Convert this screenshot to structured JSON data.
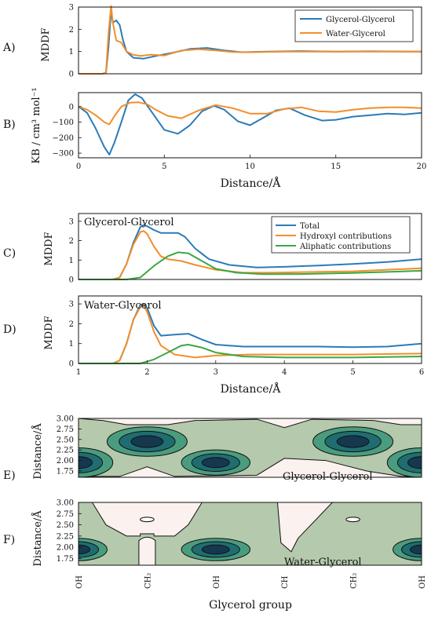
{
  "colors": {
    "blue": "#2c7bb6",
    "orange": "#f28e2b",
    "green": "#3aa843",
    "contour_bg": "#fbf1ef",
    "contour_l1": "#b5c9ac",
    "contour_l2": "#4a9c7e",
    "contour_l3": "#1f6d70",
    "contour_l4": "#16384f"
  },
  "panels": {
    "A": "A)",
    "B": "B)",
    "C": "C)",
    "D": "D)",
    "E": "E)",
    "F": "F)"
  },
  "labels": {
    "mddf": "MDDF",
    "kb": "KB / cm³ mol⁻¹",
    "distance_x": "Distance/Å",
    "distance_y": "Distance/Å",
    "glycerol_group": "Glycerol group",
    "panel_c_title": "Glycerol-Glycerol",
    "panel_d_title": "Water-Glycerol",
    "panel_e_title": "Glycerol-Glycerol",
    "panel_f_title": "Water-Glycerol"
  },
  "legend_top": [
    "Glycerol-Glycerol",
    "Water-Glycerol"
  ],
  "legend_mid": [
    "Total",
    "Hydroxyl contributions",
    "Aliphatic contributions"
  ],
  "chart_data": [
    {
      "id": "A",
      "type": "line",
      "ylabel": "MDDF",
      "xlim": [
        0,
        20
      ],
      "ylim": [
        0,
        3
      ],
      "xticks": [],
      "yticks": [
        "0",
        "1",
        "2",
        "3"
      ],
      "ytick_values": [
        0,
        1,
        2,
        3
      ],
      "legend": "top-right",
      "series": [
        {
          "name": "Glycerol-Glycerol",
          "color": "blue",
          "x": [
            0,
            1.4,
            1.6,
            1.75,
            1.9,
            2.0,
            2.2,
            2.4,
            2.6,
            2.8,
            3.2,
            3.8,
            4.5,
            5.5,
            6.5,
            7.5,
            8.5,
            9.5,
            11,
            13,
            15,
            17,
            20
          ],
          "y": [
            0,
            0,
            0.05,
            1.2,
            2.85,
            2.3,
            2.4,
            2.2,
            1.5,
            1.0,
            0.72,
            0.68,
            0.8,
            0.95,
            1.12,
            1.16,
            1.05,
            0.97,
            1.0,
            1.02,
            1.0,
            1.01,
            1.0
          ]
        },
        {
          "name": "Water-Glycerol",
          "color": "orange",
          "x": [
            0,
            1.4,
            1.6,
            1.75,
            1.9,
            2.0,
            2.2,
            2.5,
            2.8,
            3.2,
            3.6,
            4.2,
            5.0,
            6.0,
            7.0,
            8.0,
            9.0,
            10,
            12,
            14,
            16,
            18,
            20
          ],
          "y": [
            0,
            0,
            0.05,
            1.8,
            3.05,
            2.3,
            1.5,
            1.4,
            1.0,
            0.85,
            0.8,
            0.86,
            0.82,
            1.05,
            1.1,
            1.05,
            0.98,
            0.97,
            1.0,
            1.0,
            1.0,
            1.0,
            1.0
          ]
        }
      ]
    },
    {
      "id": "B",
      "type": "line",
      "ylabel": "KB / cm³ mol⁻¹",
      "xlabel": "Distance/Å",
      "xlim": [
        0,
        20
      ],
      "ylim": [
        -330,
        90
      ],
      "xticks": [
        "0",
        "5",
        "10",
        "15",
        "20"
      ],
      "xtick_values": [
        0,
        5,
        10,
        15,
        20
      ],
      "yticks": [
        "0",
        "−100",
        "−200",
        "−300"
      ],
      "ytick_values": [
        0,
        -100,
        -200,
        -300
      ],
      "series": [
        {
          "name": "Glycerol-Glycerol",
          "color": "blue",
          "x": [
            0,
            0.5,
            1.0,
            1.5,
            1.8,
            2.1,
            2.5,
            2.9,
            3.3,
            3.7,
            4.3,
            5.0,
            5.8,
            6.5,
            7.2,
            7.9,
            8.5,
            9.3,
            10.0,
            10.8,
            11.5,
            12.3,
            13.2,
            14.2,
            15.0,
            16.0,
            17.0,
            18.0,
            19.0,
            20.0
          ],
          "y": [
            0,
            -40,
            -140,
            -260,
            -310,
            -230,
            -100,
            40,
            80,
            55,
            -40,
            -150,
            -175,
            -120,
            -30,
            5,
            -20,
            -95,
            -120,
            -70,
            -25,
            -10,
            -55,
            -90,
            -85,
            -65,
            -55,
            -45,
            -50,
            -40
          ]
        },
        {
          "name": "Water-Glycerol",
          "color": "orange",
          "x": [
            0,
            0.5,
            1.0,
            1.5,
            1.8,
            2.1,
            2.5,
            3.0,
            3.5,
            4.0,
            4.5,
            5.2,
            6.0,
            7.0,
            8.0,
            9.0,
            10.0,
            11.0,
            12.0,
            13.0,
            14.0,
            15.0,
            16.0,
            17.0,
            18.0,
            19.0,
            20.0
          ],
          "y": [
            0,
            -20,
            -55,
            -100,
            -115,
            -60,
            0,
            25,
            28,
            15,
            -20,
            -60,
            -75,
            -25,
            10,
            -10,
            -45,
            -45,
            -15,
            -5,
            -30,
            -35,
            -20,
            -10,
            -5,
            -5,
            -10
          ]
        }
      ]
    },
    {
      "id": "C",
      "type": "line",
      "ylabel": "MDDF",
      "xlim": [
        1,
        6
      ],
      "ylim": [
        0,
        3.4
      ],
      "xticks": [],
      "yticks": [
        "0",
        "1",
        "2",
        "3"
      ],
      "ytick_values": [
        0,
        1,
        2,
        3
      ],
      "title": "Glycerol-Glycerol",
      "legend": "top-right",
      "series": [
        {
          "name": "Total",
          "color": "blue",
          "x": [
            1,
            1.5,
            1.6,
            1.7,
            1.8,
            1.9,
            1.95,
            2.0,
            2.1,
            2.2,
            2.3,
            2.45,
            2.55,
            2.7,
            2.9,
            3.2,
            3.6,
            4.0,
            4.5,
            5.0,
            5.5,
            6.0
          ],
          "y": [
            0,
            0,
            0.1,
            0.8,
            1.9,
            2.7,
            2.8,
            2.75,
            2.55,
            2.4,
            2.4,
            2.4,
            2.2,
            1.6,
            1.05,
            0.75,
            0.62,
            0.65,
            0.72,
            0.8,
            0.9,
            1.05
          ]
        },
        {
          "name": "Hydroxyl contributions",
          "color": "orange",
          "x": [
            1,
            1.5,
            1.6,
            1.7,
            1.8,
            1.9,
            1.95,
            2.0,
            2.1,
            2.2,
            2.3,
            2.5,
            2.7,
            3.0,
            3.4,
            3.8,
            4.3,
            5.0,
            5.5,
            6.0
          ],
          "y": [
            0,
            0,
            0.1,
            0.8,
            1.8,
            2.45,
            2.5,
            2.35,
            1.7,
            1.2,
            1.05,
            0.95,
            0.75,
            0.5,
            0.35,
            0.35,
            0.38,
            0.42,
            0.5,
            0.58
          ]
        },
        {
          "name": "Aliphatic contributions",
          "color": "green",
          "x": [
            1,
            1.7,
            1.9,
            2.1,
            2.3,
            2.45,
            2.6,
            2.8,
            3.0,
            3.3,
            3.7,
            4.2,
            5.0,
            6.0
          ],
          "y": [
            0,
            0,
            0.1,
            0.7,
            1.2,
            1.4,
            1.35,
            0.95,
            0.55,
            0.35,
            0.27,
            0.28,
            0.33,
            0.45
          ]
        }
      ]
    },
    {
      "id": "D",
      "type": "line",
      "ylabel": "MDDF",
      "xlabel": "Distance/Å",
      "xlim": [
        1,
        6
      ],
      "ylim": [
        0,
        3.4
      ],
      "xticks": [
        "1",
        "2",
        "3",
        "4",
        "5",
        "6"
      ],
      "xtick_values": [
        1,
        2,
        3,
        4,
        5,
        6
      ],
      "yticks": [
        "0",
        "1",
        "2",
        "3"
      ],
      "ytick_values": [
        0,
        1,
        2,
        3
      ],
      "title": "Water-Glycerol",
      "series": [
        {
          "name": "Total",
          "color": "blue",
          "x": [
            1,
            1.5,
            1.6,
            1.7,
            1.8,
            1.9,
            1.95,
            2.0,
            2.1,
            2.2,
            2.4,
            2.6,
            2.8,
            3.0,
            3.4,
            4.0,
            4.5,
            5.0,
            5.5,
            6.0
          ],
          "y": [
            0,
            0,
            0.15,
            1.0,
            2.2,
            2.95,
            3.0,
            2.8,
            1.9,
            1.4,
            1.45,
            1.5,
            1.2,
            0.95,
            0.85,
            0.85,
            0.85,
            0.82,
            0.85,
            1.0
          ]
        },
        {
          "name": "Hydroxyl contributions",
          "color": "orange",
          "x": [
            1,
            1.5,
            1.6,
            1.7,
            1.8,
            1.9,
            1.95,
            2.0,
            2.1,
            2.2,
            2.4,
            2.7,
            3.0,
            3.5,
            4.0,
            5.0,
            6.0
          ],
          "y": [
            0,
            0,
            0.15,
            1.0,
            2.2,
            2.85,
            2.9,
            2.6,
            1.6,
            0.9,
            0.45,
            0.3,
            0.4,
            0.45,
            0.45,
            0.45,
            0.5
          ]
        },
        {
          "name": "Aliphatic contributions",
          "color": "green",
          "x": [
            1,
            1.9,
            2.1,
            2.3,
            2.5,
            2.6,
            2.8,
            3.0,
            3.4,
            4.0,
            5.0,
            6.0
          ],
          "y": [
            0,
            0,
            0.2,
            0.55,
            0.9,
            0.95,
            0.8,
            0.55,
            0.35,
            0.3,
            0.3,
            0.35
          ]
        }
      ]
    },
    {
      "id": "E",
      "type": "heatmap",
      "ylabel": "Distance/Å",
      "ylim": [
        1.6,
        3.0
      ],
      "yticks": [
        "1.75",
        "2.00",
        "2.25",
        "2.50",
        "2.75",
        "3.00"
      ],
      "ytick_values": [
        1.75,
        2.0,
        2.25,
        2.5,
        2.75,
        3.0
      ],
      "xcats": [
        "OH",
        "CH₂",
        "OH",
        "CH",
        "CH₂",
        "OH"
      ],
      "title": "Glycerol-Glycerol",
      "blobs": [
        {
          "x": 0.0,
          "y": 1.95,
          "rx": 0.6,
          "ry": 0.35,
          "levels": 4
        },
        {
          "x": 1.0,
          "y": 2.45,
          "rx": 0.7,
          "ry": 0.35,
          "levels": 3
        },
        {
          "x": 2.0,
          "y": 1.95,
          "rx": 0.6,
          "ry": 0.3,
          "levels": 4
        },
        {
          "x": 4.0,
          "y": 2.45,
          "rx": 0.7,
          "ry": 0.35,
          "levels": 3
        },
        {
          "x": 5.0,
          "y": 1.95,
          "rx": 0.6,
          "ry": 0.35,
          "levels": 4
        }
      ]
    },
    {
      "id": "F",
      "type": "heatmap",
      "ylabel": "Distance/Å",
      "xlabel": "Glycerol group",
      "ylim": [
        1.6,
        3.0
      ],
      "yticks": [
        "1.75",
        "2.00",
        "2.25",
        "2.50",
        "2.75",
        "3.00"
      ],
      "ytick_values": [
        1.75,
        2.0,
        2.25,
        2.5,
        2.75,
        3.0
      ],
      "xcats": [
        "OH",
        "CH₂",
        "OH",
        "CH",
        "CH₂",
        "OH"
      ],
      "title": "Water-Glycerol",
      "blobs": [
        {
          "x": 0.0,
          "y": 1.95,
          "rx": 0.5,
          "ry": 0.25,
          "levels": 4
        },
        {
          "x": 2.0,
          "y": 1.95,
          "rx": 0.6,
          "ry": 0.25,
          "levels": 4
        },
        {
          "x": 5.0,
          "y": 1.95,
          "rx": 0.5,
          "ry": 0.25,
          "levels": 4
        },
        {
          "x": 1.0,
          "y": 2.62,
          "rx": 0.12,
          "ry": 0.05,
          "levels": 1
        },
        {
          "x": 4.0,
          "y": 2.62,
          "rx": 0.12,
          "ry": 0.05,
          "levels": 1
        }
      ]
    }
  ]
}
